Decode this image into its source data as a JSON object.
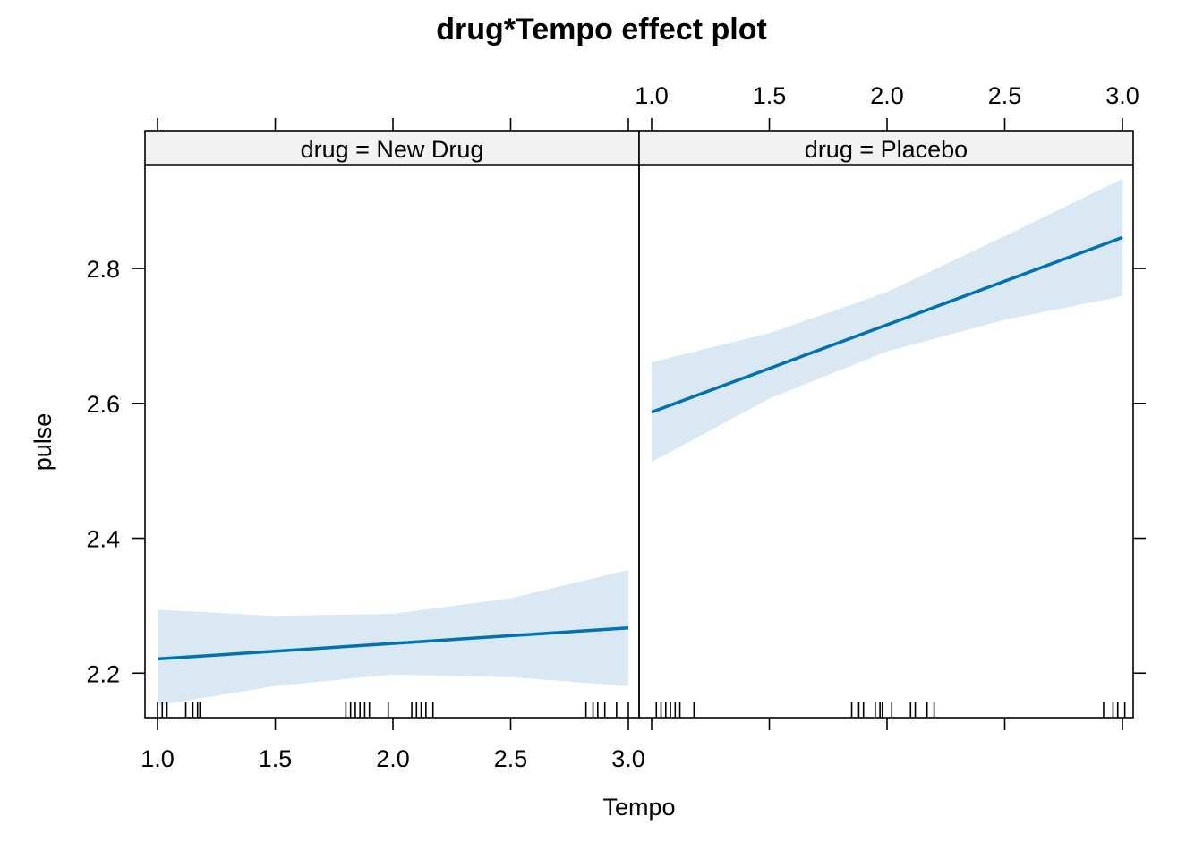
{
  "chart_data": {
    "type": "line",
    "title": "drug*Tempo effect plot",
    "xlabel": "Tempo",
    "ylabel": "pulse",
    "xlim": [
      0.95,
      3.05
    ],
    "ylim": [
      2.134,
      2.954
    ],
    "x_ticks": [
      {
        "value": 1.0,
        "label": "1.0"
      },
      {
        "value": 1.5,
        "label": "1.5"
      },
      {
        "value": 2.0,
        "label": "2.0"
      },
      {
        "value": 2.5,
        "label": "2.5"
      },
      {
        "value": 3.0,
        "label": "3.0"
      }
    ],
    "y_ticks": [
      {
        "value": 2.2,
        "label": "2.2"
      },
      {
        "value": 2.4,
        "label": "2.4"
      },
      {
        "value": 2.6,
        "label": "2.6"
      },
      {
        "value": 2.8,
        "label": "2.8"
      }
    ],
    "grid": false,
    "line_color": "#0072B2",
    "band_color": "#DAE8F3",
    "strip_color": "#F2F2F2",
    "panels": [
      {
        "strip_label": "drug = New Drug",
        "fit": {
          "x": [
            1.0,
            3.0
          ],
          "y": [
            2.221,
            2.267
          ]
        },
        "band": {
          "x": [
            1.0,
            1.5,
            2.0,
            2.5,
            3.0
          ],
          "lower": [
            2.152,
            2.181,
            2.198,
            2.194,
            2.181
          ],
          "upper": [
            2.294,
            2.285,
            2.288,
            2.311,
            2.353
          ]
        },
        "rug": [
          1.0,
          1.02,
          1.04,
          1.12,
          1.15,
          1.17,
          1.18,
          1.8,
          1.82,
          1.84,
          1.86,
          1.88,
          1.9,
          1.98,
          2.08,
          2.1,
          2.12,
          2.14,
          2.17,
          2.82,
          2.85,
          2.87,
          2.9,
          2.95,
          3.0
        ]
      },
      {
        "strip_label": "drug = Placebo",
        "fit": {
          "x": [
            1.0,
            3.0
          ],
          "y": [
            2.587,
            2.846
          ]
        },
        "band": {
          "x": [
            1.0,
            1.5,
            2.0,
            2.5,
            3.0
          ],
          "lower": [
            2.513,
            2.607,
            2.677,
            2.724,
            2.759
          ],
          "upper": [
            2.661,
            2.704,
            2.765,
            2.848,
            2.933
          ]
        },
        "rug": [
          1.02,
          1.04,
          1.06,
          1.08,
          1.1,
          1.12,
          1.18,
          1.85,
          1.88,
          1.9,
          1.95,
          1.97,
          1.98,
          2.02,
          2.1,
          2.12,
          2.17,
          2.2,
          2.92,
          2.96,
          2.98,
          3.01
        ]
      }
    ]
  }
}
